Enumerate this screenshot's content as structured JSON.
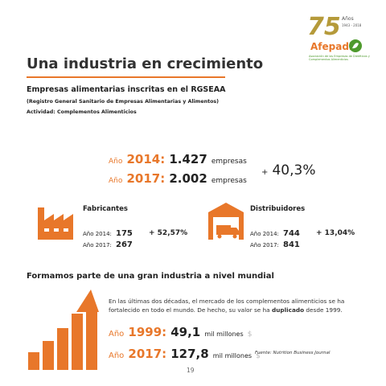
{
  "logo": {
    "number": "75",
    "years_label": "Años",
    "years": "1943 - 2018",
    "name": "Afepadi",
    "tagline": "Asociación de las Empresas de Dietéticos y Complementos Alimenticios"
  },
  "header": {
    "title": "Una industria en crecimiento"
  },
  "registry": {
    "title": "Empresas alimentarias inscritas en el RGSEAA",
    "note": "(Registro General Sanitario de Empresas Alimentarias y Alimentos)",
    "activity": "Actividad: Complementos Alimenticios",
    "rows": [
      {
        "label": "Año",
        "year": "2014:",
        "value": "1.427",
        "unit": "empresas"
      },
      {
        "label": "Año",
        "year": "2017:",
        "value": "2.002",
        "unit": "empresas"
      }
    ],
    "growth_sign": "+",
    "growth": "40,3%"
  },
  "groups": [
    {
      "title": "Fabricantes",
      "rows": [
        {
          "label": "Año 2014:",
          "value": "175"
        },
        {
          "label": "Año 2017:",
          "value": "267"
        }
      ],
      "growth": "+ 52,57%"
    },
    {
      "title": "Distribuidores",
      "rows": [
        {
          "label": "Año 2014:",
          "value": "744"
        },
        {
          "label": "Año 2017:",
          "value": "841"
        }
      ],
      "growth": "+ 13,04%"
    }
  ],
  "world": {
    "title": "Formamos parte de una gran industria a nivel mundial",
    "paragraph": [
      "En las últimas dos décadas, el mercado de los complementos alimenticios se ha fortalecido en todo el mundo. De hecho, su valor se ha ",
      "duplicado",
      " desde 1999."
    ],
    "rows": [
      {
        "label": "Año",
        "year": "1999:",
        "value": "49,1",
        "unit": "mil millones",
        "currency": "$"
      },
      {
        "label": "Año",
        "year": "2017:",
        "value": "127,8",
        "unit": "mil millones",
        "currency": "$"
      }
    ],
    "source": "Fuente: Nutrition Business Journal"
  },
  "footer": {
    "page": "19"
  }
}
